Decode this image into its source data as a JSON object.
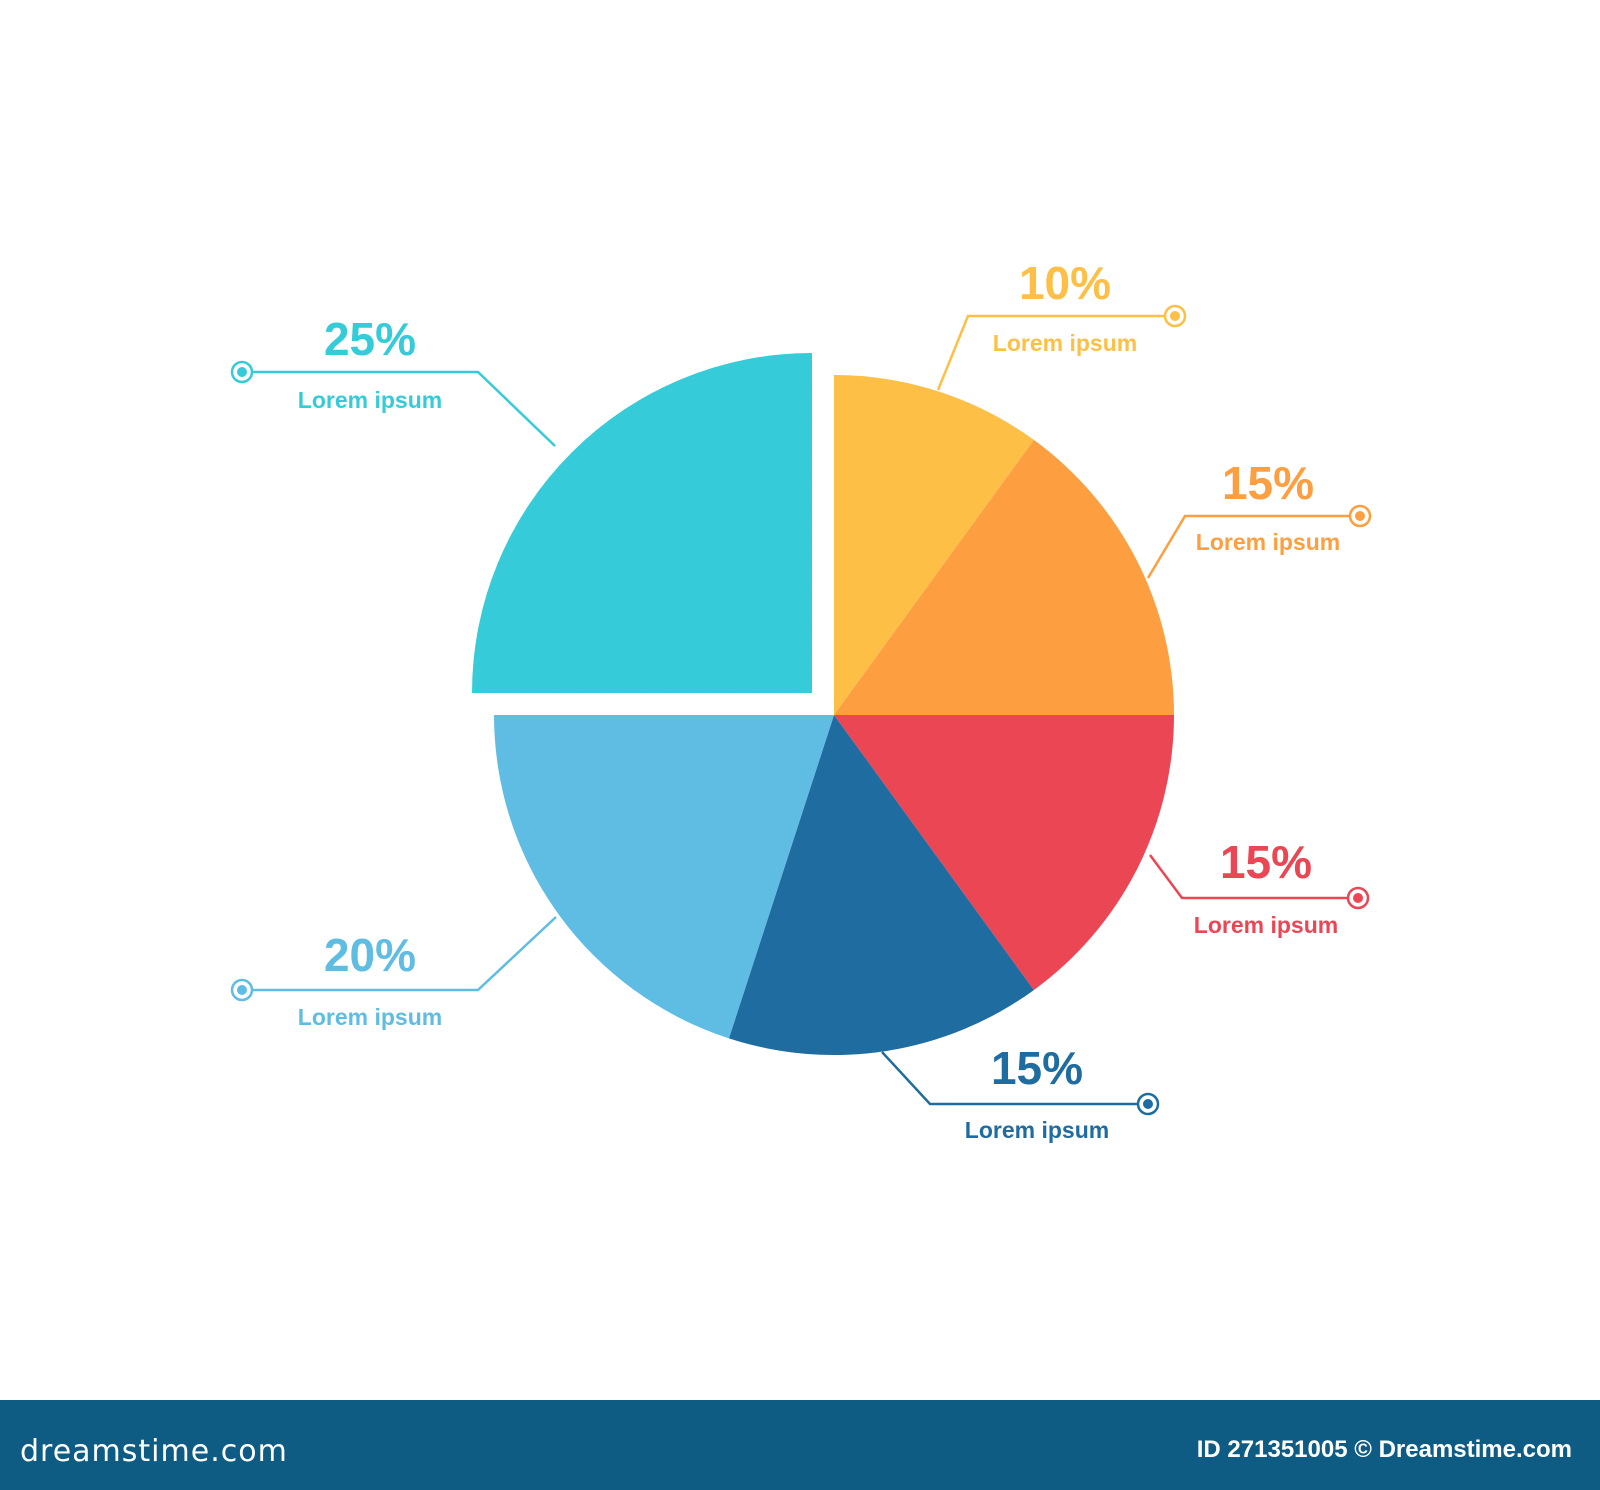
{
  "chart_data": {
    "type": "pie",
    "slices": [
      {
        "value": 10,
        "value_label": "10%",
        "label": "Lorem ipsum",
        "color": "#fdbf45"
      },
      {
        "value": 15,
        "value_label": "15%",
        "label": "Lorem ipsum",
        "color": "#fd9f40"
      },
      {
        "value": 15,
        "value_label": "15%",
        "label": "Lorem ipsum",
        "color": "#eb4654"
      },
      {
        "value": 15,
        "value_label": "15%",
        "label": "Lorem ipsum",
        "color": "#1e6ca0"
      },
      {
        "value": 20,
        "value_label": "20%",
        "label": "Lorem ipsum",
        "color": "#5fbde3"
      },
      {
        "value": 25,
        "value_label": "25%",
        "label": "Lorem ipsum",
        "color": "#35cbd9",
        "style": "hatched, exploded"
      }
    ]
  },
  "footer": {
    "brand": "dreamstime.com",
    "credit": "ID 271351005 © Dreamstime.com"
  },
  "colors": {
    "footer_bg": "#0e5c84"
  }
}
